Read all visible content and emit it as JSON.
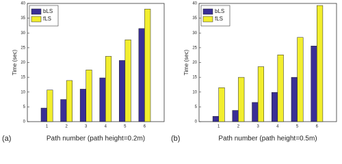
{
  "chart_data": [
    {
      "type": "bar",
      "panel_label": "(a)",
      "xlabel": "Path number (path height=0.2m)",
      "ylabel": "Time (sec)",
      "categories": [
        "1",
        "2",
        "3",
        "4",
        "5",
        "6"
      ],
      "series": [
        {
          "name": "bLS",
          "color": "#3a2f96",
          "values": [
            4.6,
            7.5,
            11,
            14.8,
            20.7,
            31.5
          ]
        },
        {
          "name": "fLS",
          "color": "#f2ee2e",
          "values": [
            10.7,
            13.9,
            17.5,
            22.1,
            27.7,
            38.1
          ]
        }
      ],
      "ylim": [
        0,
        40
      ],
      "yticks": [
        0,
        5,
        10,
        15,
        20,
        25,
        30,
        35,
        40
      ],
      "legend": "upper left"
    },
    {
      "type": "bar",
      "panel_label": "(b)",
      "xlabel": "Path number (path height=0.5m)",
      "ylabel": "Time (sec)",
      "categories": [
        "1",
        "2",
        "3",
        "4",
        "5",
        "6"
      ],
      "series": [
        {
          "name": "bLS",
          "color": "#3a2f96",
          "values": [
            1.8,
            3.8,
            6.5,
            9.9,
            15,
            25.6
          ]
        },
        {
          "name": "fLS",
          "color": "#f2ee2e",
          "values": [
            11.5,
            15,
            18.6,
            22.6,
            28.5,
            39.3
          ]
        }
      ],
      "ylim": [
        0,
        40
      ],
      "yticks": [
        0,
        5,
        10,
        15,
        20,
        25,
        30,
        35,
        40
      ],
      "legend": "upper left"
    }
  ]
}
